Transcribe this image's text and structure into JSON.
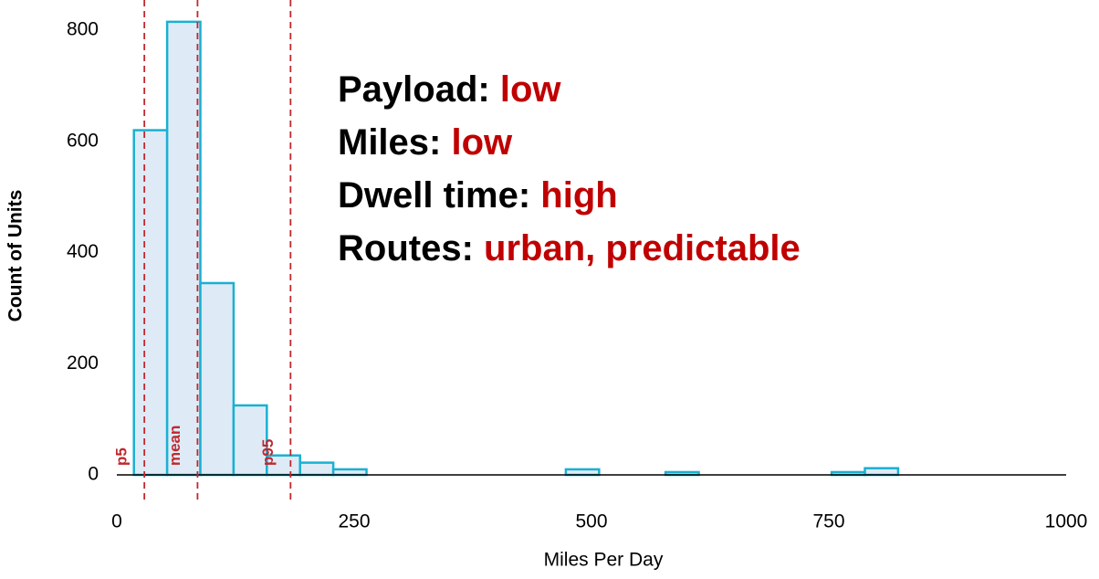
{
  "chart_data": {
    "type": "histogram",
    "x_label": "Miles Per Day",
    "y_label": "Count of Units",
    "bins": [
      18,
      53,
      88,
      123,
      158,
      193,
      228,
      263,
      298,
      333,
      368,
      403,
      438,
      473,
      508,
      543,
      578,
      613,
      648,
      683,
      718,
      753,
      788,
      823
    ],
    "counts": [
      620,
      815,
      345,
      125,
      35,
      22,
      10,
      0,
      0,
      0,
      0,
      0,
      0,
      10,
      0,
      0,
      5,
      0,
      0,
      0,
      0,
      5,
      12
    ],
    "color": "#deebf7",
    "edge_color": "#1ab0d2",
    "xlim": [
      0,
      1000
    ],
    "ylim": [
      0,
      830
    ],
    "xticks": [
      0,
      250,
      500,
      750,
      1000
    ],
    "yticks": [
      0,
      200,
      400,
      600,
      800
    ],
    "reference_lines": [
      {
        "label": "p5",
        "value": 29
      },
      {
        "label": "mean",
        "value": 85
      },
      {
        "label": "p95",
        "value": 183
      }
    ],
    "reference_color": "#c0282d",
    "annotations": [
      {
        "label": "Payload:",
        "value": "low"
      },
      {
        "label": "Miles:",
        "value": "low"
      },
      {
        "label": "Dwell time:",
        "value": "high"
      },
      {
        "label": "Routes:",
        "value": "urban, predictable"
      }
    ],
    "annotation_color": "#c00000"
  }
}
